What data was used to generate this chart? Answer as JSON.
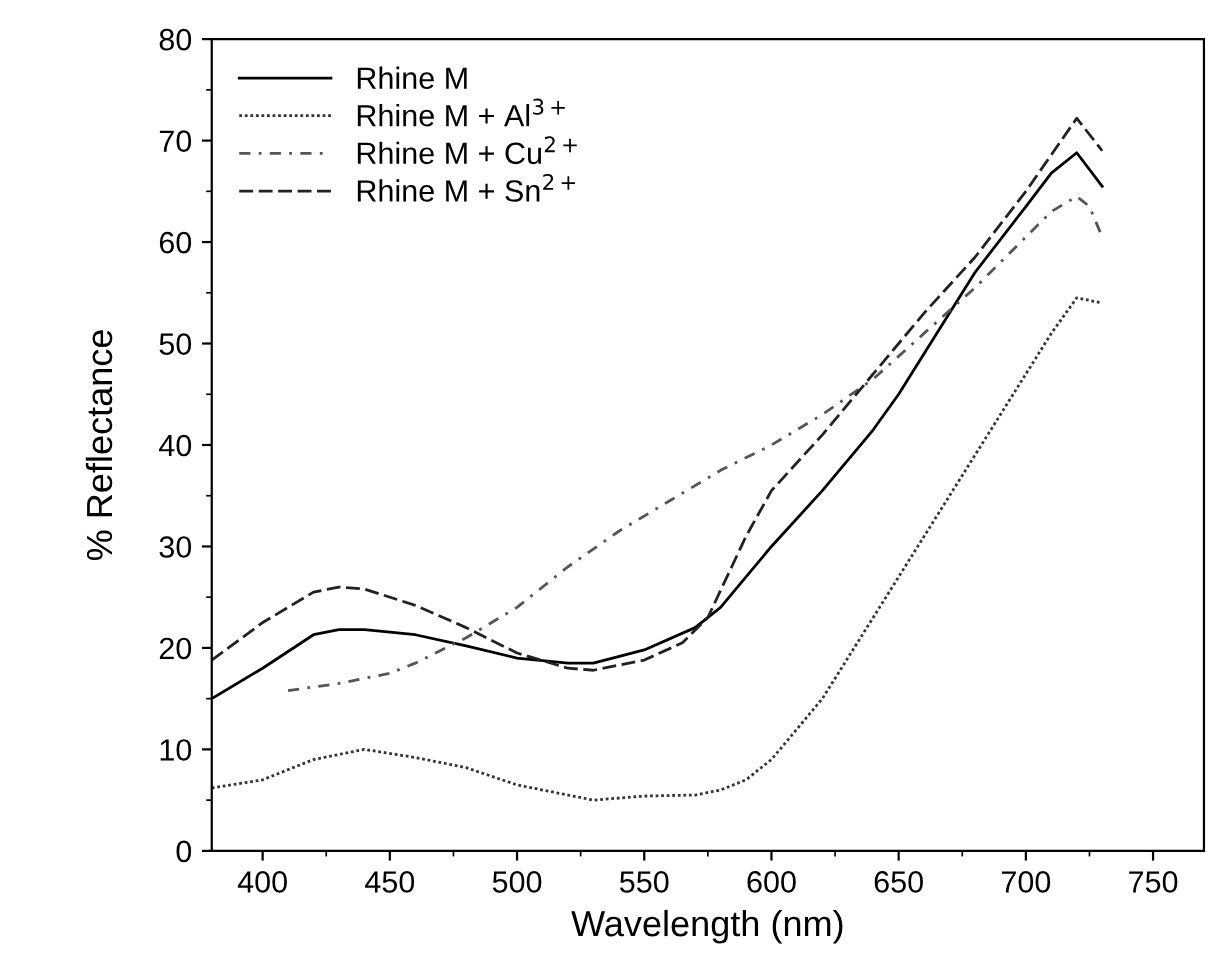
{
  "chart_data": {
    "type": "line",
    "xlabel": "Wavelength (nm)",
    "ylabel": "% Reflectance",
    "xlim": [
      380,
      770
    ],
    "ylim": [
      0,
      80
    ],
    "xticks": [
      400,
      450,
      500,
      550,
      600,
      650,
      700,
      750
    ],
    "yticks": [
      0,
      10,
      20,
      30,
      40,
      50,
      60,
      70,
      80
    ],
    "grid": false,
    "legend": "top left",
    "marker": "none",
    "series": [
      {
        "name": "Rhine M",
        "color": "#000000",
        "line_style": "solid",
        "x": [
          380,
          400,
          420,
          430,
          440,
          460,
          480,
          500,
          520,
          530,
          550,
          570,
          580,
          600,
          620,
          640,
          650,
          670,
          680,
          700,
          710,
          720,
          730
        ],
        "values": [
          15,
          18,
          21.3,
          21.8,
          21.8,
          21.3,
          20.2,
          19,
          18.5,
          18.5,
          19.8,
          22,
          24,
          30,
          35.5,
          41.5,
          45,
          53,
          57,
          63.5,
          66.8,
          68.8,
          65.5
        ]
      },
      {
        "name": "Rhine M + Al$^{3+}$",
        "color": "#333333",
        "line_style": "dotted",
        "x": [
          380,
          400,
          420,
          440,
          460,
          480,
          500,
          520,
          530,
          550,
          570,
          580,
          590,
          600,
          620,
          640,
          660,
          680,
          700,
          710,
          720,
          730
        ],
        "values": [
          6.2,
          7,
          9,
          10,
          9.2,
          8.2,
          6.5,
          5.5,
          5,
          5.4,
          5.5,
          6,
          7,
          9,
          15,
          23,
          31,
          39,
          47,
          51,
          54.5,
          54
        ]
      },
      {
        "name": "Rhine M + Cu$^{2+}$",
        "color": "#555555",
        "line_style": "dashdot",
        "x": [
          410,
          430,
          450,
          460,
          480,
          500,
          520,
          540,
          560,
          580,
          600,
          620,
          640,
          660,
          680,
          700,
          710,
          720,
          725,
          730
        ],
        "values": [
          15.8,
          16.5,
          17.5,
          18.5,
          21,
          24,
          28,
          31.5,
          34.5,
          37.5,
          40,
          43,
          46.5,
          51,
          55.5,
          60.5,
          63,
          64.5,
          63.5,
          60.5
        ]
      },
      {
        "name": "Rhine M + Sn$^{2+}$",
        "color": "#222222",
        "line_style": "dashed",
        "x": [
          380,
          400,
          420,
          430,
          440,
          460,
          480,
          500,
          520,
          530,
          550,
          565,
          575,
          590,
          600,
          620,
          640,
          660,
          680,
          700,
          720,
          730
        ],
        "values": [
          18.8,
          22.5,
          25.5,
          26,
          25.8,
          24.2,
          22,
          19.5,
          18,
          17.8,
          18.8,
          20.5,
          23,
          31,
          35.5,
          41,
          47,
          53,
          58.5,
          65,
          72.2,
          69
        ]
      }
    ]
  }
}
